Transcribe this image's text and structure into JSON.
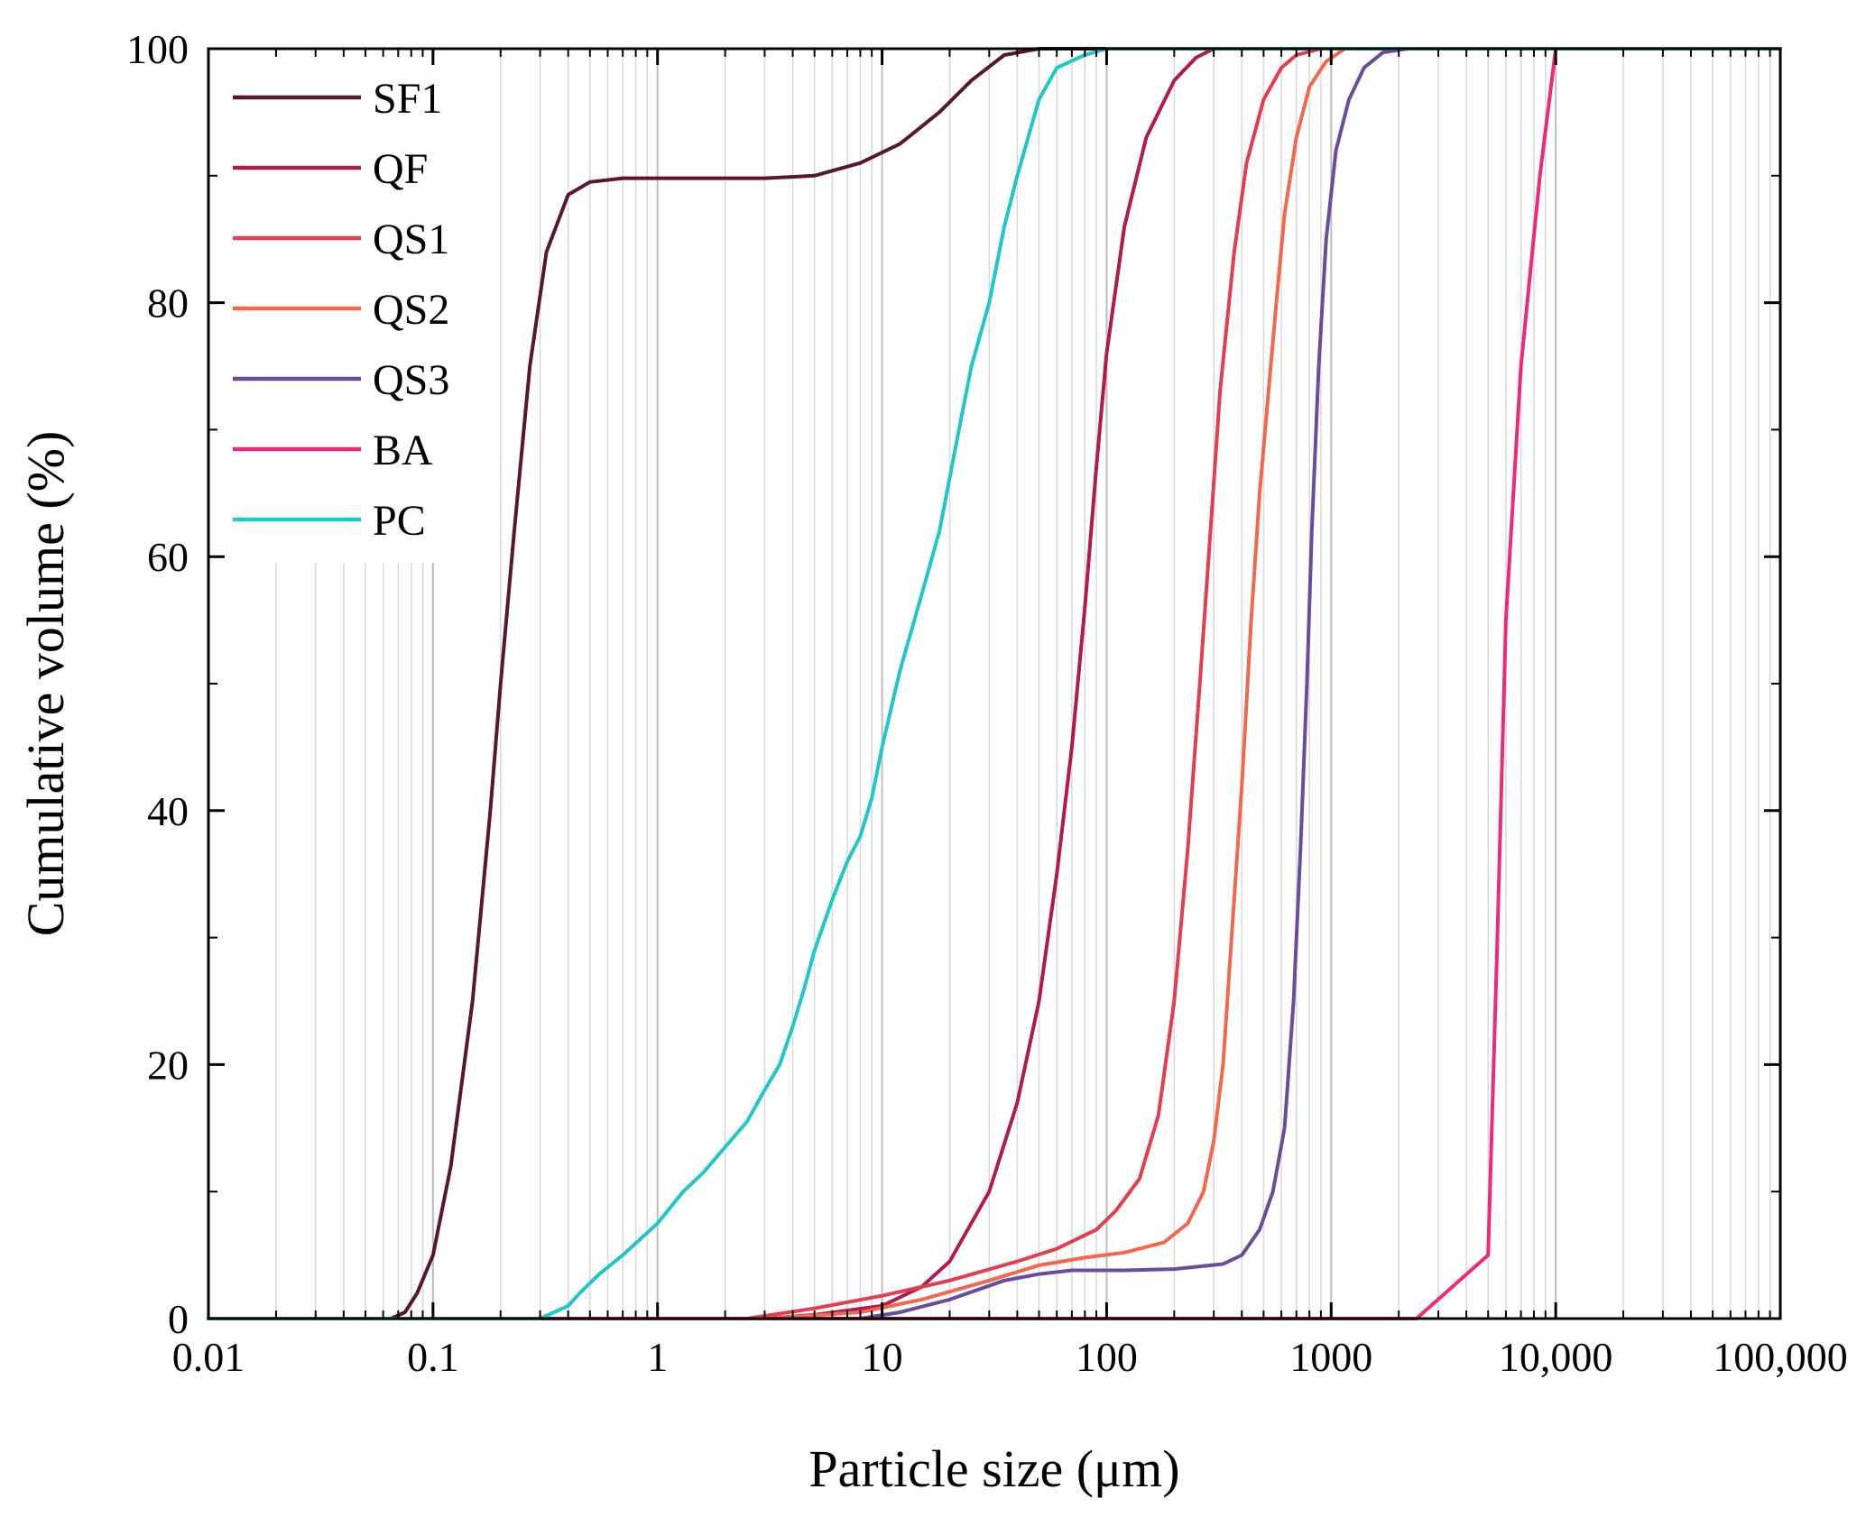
{
  "chart_data": {
    "type": "line",
    "title": "",
    "xlabel": "Particle size (μm)",
    "ylabel": "Cumulative volume (%)",
    "xscale": "log",
    "xlim": [
      0.01,
      100000
    ],
    "ylim": [
      0,
      100
    ],
    "grid": "vertical log minor grid",
    "legend_position": "top-left",
    "x_tick_labels": [
      {
        "value": 0.01,
        "label": "0.01"
      },
      {
        "value": 0.1,
        "label": "0.1"
      },
      {
        "value": 1,
        "label": "1"
      },
      {
        "value": 10,
        "label": "10"
      },
      {
        "value": 100,
        "label": "100"
      },
      {
        "value": 1000,
        "label": "1000"
      },
      {
        "value": 10000,
        "label": "10,000"
      },
      {
        "value": 100000,
        "label": "100,000"
      }
    ],
    "y_tick_labels": [
      {
        "value": 0,
        "label": "0"
      },
      {
        "value": 20,
        "label": "20"
      },
      {
        "value": 40,
        "label": "40"
      },
      {
        "value": 60,
        "label": "60"
      },
      {
        "value": 80,
        "label": "80"
      },
      {
        "value": 100,
        "label": "100"
      }
    ],
    "series": [
      {
        "name": "SF1",
        "color": "#5a1530",
        "points": [
          [
            0.01,
            0
          ],
          [
            0.065,
            0
          ],
          [
            0.075,
            0.5
          ],
          [
            0.085,
            2
          ],
          [
            0.1,
            5
          ],
          [
            0.12,
            12
          ],
          [
            0.15,
            25
          ],
          [
            0.18,
            40
          ],
          [
            0.2,
            50
          ],
          [
            0.23,
            62
          ],
          [
            0.27,
            75
          ],
          [
            0.32,
            84
          ],
          [
            0.4,
            88.5
          ],
          [
            0.5,
            89.5
          ],
          [
            0.7,
            89.8
          ],
          [
            1,
            89.8
          ],
          [
            2,
            89.8
          ],
          [
            3,
            89.8
          ],
          [
            5,
            90
          ],
          [
            8,
            91
          ],
          [
            12,
            92.5
          ],
          [
            18,
            95
          ],
          [
            25,
            97.5
          ],
          [
            35,
            99.5
          ],
          [
            50,
            100
          ],
          [
            100000,
            100
          ]
        ]
      },
      {
        "name": "QF",
        "color": "#b3184e",
        "points": [
          [
            0.01,
            0
          ],
          [
            3,
            0
          ],
          [
            5,
            0.3
          ],
          [
            10,
            1
          ],
          [
            15,
            2.5
          ],
          [
            20,
            4.5
          ],
          [
            30,
            10
          ],
          [
            40,
            17
          ],
          [
            50,
            25
          ],
          [
            60,
            35
          ],
          [
            70,
            45
          ],
          [
            80,
            56
          ],
          [
            90,
            67
          ],
          [
            100,
            76
          ],
          [
            120,
            86
          ],
          [
            150,
            93
          ],
          [
            200,
            97.5
          ],
          [
            250,
            99.3
          ],
          [
            300,
            100
          ],
          [
            100000,
            100
          ]
        ]
      },
      {
        "name": "QS1",
        "color": "#e63c50",
        "points": [
          [
            0.01,
            0
          ],
          [
            2.5,
            0
          ],
          [
            5,
            0.8
          ],
          [
            10,
            1.8
          ],
          [
            20,
            3
          ],
          [
            40,
            4.5
          ],
          [
            60,
            5.5
          ],
          [
            90,
            7
          ],
          [
            110,
            8.5
          ],
          [
            140,
            11
          ],
          [
            170,
            16
          ],
          [
            200,
            25
          ],
          [
            230,
            37
          ],
          [
            260,
            50
          ],
          [
            290,
            62
          ],
          [
            320,
            73
          ],
          [
            370,
            84
          ],
          [
            420,
            91
          ],
          [
            500,
            96
          ],
          [
            600,
            98.5
          ],
          [
            700,
            99.5
          ],
          [
            900,
            100
          ],
          [
            100000,
            100
          ]
        ]
      },
      {
        "name": "QS2",
        "color": "#f5664a",
        "points": [
          [
            0.01,
            0
          ],
          [
            3,
            0
          ],
          [
            8,
            0.5
          ],
          [
            15,
            1.5
          ],
          [
            30,
            3
          ],
          [
            50,
            4.2
          ],
          [
            80,
            4.8
          ],
          [
            120,
            5.2
          ],
          [
            180,
            6
          ],
          [
            230,
            7.5
          ],
          [
            270,
            10
          ],
          [
            300,
            14
          ],
          [
            330,
            20
          ],
          [
            360,
            30
          ],
          [
            400,
            42
          ],
          [
            440,
            55
          ],
          [
            480,
            65
          ],
          [
            520,
            72
          ],
          [
            570,
            80
          ],
          [
            620,
            87
          ],
          [
            700,
            93
          ],
          [
            800,
            97
          ],
          [
            950,
            99
          ],
          [
            1150,
            100
          ],
          [
            100000,
            100
          ]
        ]
      },
      {
        "name": "QS3",
        "color": "#6a4c9c",
        "points": [
          [
            0.01,
            0
          ],
          [
            8,
            0
          ],
          [
            12,
            0.5
          ],
          [
            20,
            1.5
          ],
          [
            35,
            3
          ],
          [
            50,
            3.5
          ],
          [
            70,
            3.8
          ],
          [
            120,
            3.8
          ],
          [
            200,
            3.9
          ],
          [
            330,
            4.3
          ],
          [
            400,
            5
          ],
          [
            480,
            7
          ],
          [
            550,
            10
          ],
          [
            620,
            15
          ],
          [
            680,
            25
          ],
          [
            730,
            37
          ],
          [
            780,
            50
          ],
          [
            820,
            62
          ],
          [
            880,
            75
          ],
          [
            950,
            85
          ],
          [
            1050,
            92
          ],
          [
            1200,
            96
          ],
          [
            1400,
            98.5
          ],
          [
            1700,
            99.7
          ],
          [
            2200,
            100
          ],
          [
            100000,
            100
          ]
        ]
      },
      {
        "name": "BA",
        "color": "#f0287a",
        "points": [
          [
            0.01,
            0
          ],
          [
            2400,
            0
          ],
          [
            5000,
            5
          ],
          [
            5500,
            30
          ],
          [
            6000,
            55
          ],
          [
            7000,
            75
          ],
          [
            8500,
            90
          ],
          [
            10000,
            100
          ],
          [
            100000,
            100
          ]
        ]
      },
      {
        "name": "PC",
        "color": "#1ec8c8",
        "points": [
          [
            0.01,
            0
          ],
          [
            0.3,
            0
          ],
          [
            0.4,
            1
          ],
          [
            0.45,
            2
          ],
          [
            0.55,
            3.5
          ],
          [
            0.7,
            5
          ],
          [
            1,
            7.5
          ],
          [
            1.3,
            10
          ],
          [
            1.6,
            11.5
          ],
          [
            2,
            13.5
          ],
          [
            2.5,
            15.5
          ],
          [
            3,
            18
          ],
          [
            3.5,
            20
          ],
          [
            4,
            23
          ],
          [
            4.5,
            26
          ],
          [
            5,
            29
          ],
          [
            6,
            33
          ],
          [
            7,
            36
          ],
          [
            8,
            38
          ],
          [
            9,
            41
          ],
          [
            10,
            45
          ],
          [
            12,
            51
          ],
          [
            15,
            57
          ],
          [
            18,
            62
          ],
          [
            22,
            70
          ],
          [
            25,
            75
          ],
          [
            30,
            80
          ],
          [
            35,
            86
          ],
          [
            40,
            90
          ],
          [
            50,
            96
          ],
          [
            60,
            98.5
          ],
          [
            80,
            99.5
          ],
          [
            100,
            100
          ],
          [
            100000,
            100
          ]
        ]
      }
    ]
  }
}
